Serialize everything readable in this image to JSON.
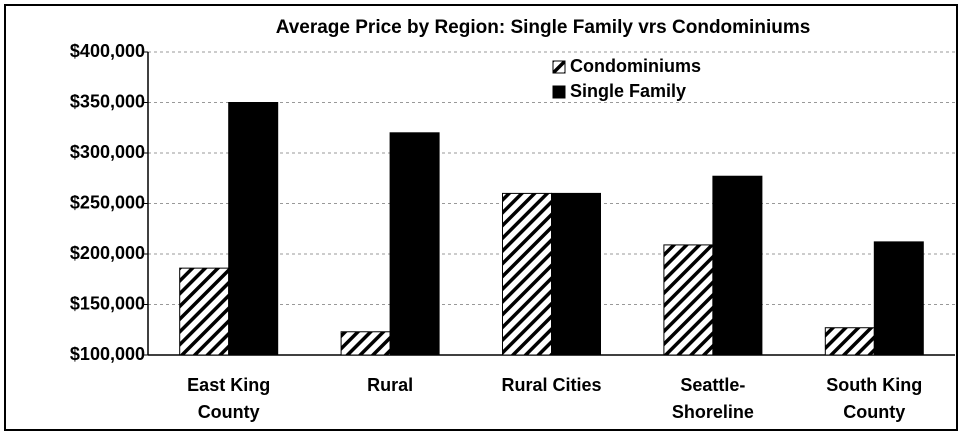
{
  "chart_data": {
    "type": "bar",
    "title": "Average Price by Region: Single Family vrs Condominiums",
    "categories": [
      "East King County",
      "Rural",
      "Rural Cities",
      "Seattle-Shoreline",
      "South King County"
    ],
    "series": [
      {
        "name": "Condominiums",
        "color": "#000000",
        "hatch": true,
        "values": [
          186000,
          123000,
          260000,
          209000,
          127000
        ]
      },
      {
        "name": "Single Family",
        "color": "#000000",
        "values": [
          350000,
          320000,
          260000,
          277000,
          212000
        ]
      }
    ],
    "ylim": [
      100000,
      400000
    ],
    "yticks": [
      {
        "value": 100000,
        "label": "$100,000"
      },
      {
        "value": 150000,
        "label": "$150,000"
      },
      {
        "value": 200000,
        "label": "$200,000"
      },
      {
        "value": 250000,
        "label": "$250,000"
      },
      {
        "value": 300000,
        "label": "$300,000"
      },
      {
        "value": 350000,
        "label": "$350,000"
      },
      {
        "value": 400000,
        "label": "$400,000"
      }
    ],
    "grid": true
  }
}
